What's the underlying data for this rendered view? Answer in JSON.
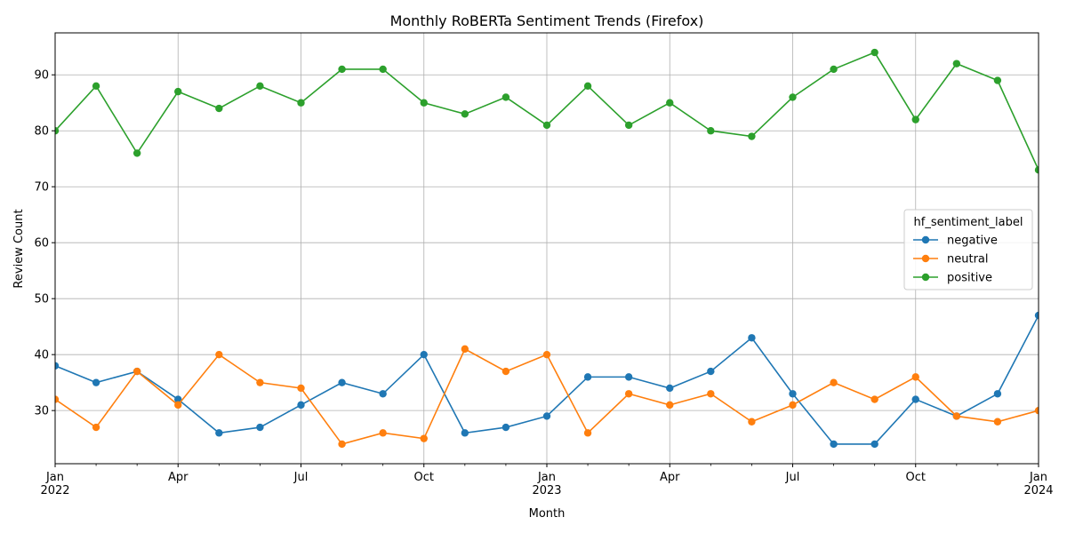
{
  "chart_data": {
    "type": "line",
    "title": "Monthly RoBERTa Sentiment Trends (Firefox)",
    "xlabel": "Month",
    "ylabel": "Review Count",
    "x": [
      "2022-01",
      "2022-02",
      "2022-03",
      "2022-04",
      "2022-05",
      "2022-06",
      "2022-07",
      "2022-08",
      "2022-09",
      "2022-10",
      "2022-11",
      "2022-12",
      "2023-01",
      "2023-02",
      "2023-03",
      "2023-04",
      "2023-05",
      "2023-06",
      "2023-07",
      "2023-08",
      "2023-09",
      "2023-10",
      "2023-11",
      "2023-12",
      "2024-01"
    ],
    "x_tick_labels": [
      {
        "month": "2022-01",
        "lines": [
          "Jan",
          "2022"
        ]
      },
      {
        "month": "2022-04",
        "lines": [
          "Apr"
        ]
      },
      {
        "month": "2022-07",
        "lines": [
          "Jul"
        ]
      },
      {
        "month": "2022-10",
        "lines": [
          "Oct"
        ]
      },
      {
        "month": "2023-01",
        "lines": [
          "Jan",
          "2023"
        ]
      },
      {
        "month": "2023-04",
        "lines": [
          "Apr"
        ]
      },
      {
        "month": "2023-07",
        "lines": [
          "Jul"
        ]
      },
      {
        "month": "2023-10",
        "lines": [
          "Oct"
        ]
      },
      {
        "month": "2024-01",
        "lines": [
          "Jan",
          "2024"
        ]
      }
    ],
    "ylim": [
      20.5,
      97.5
    ],
    "y_ticks": [
      30,
      40,
      50,
      60,
      70,
      80,
      90
    ],
    "grid": true,
    "legend": {
      "title": "hf_sentiment_label",
      "placement": "center-right"
    },
    "series": [
      {
        "name": "negative",
        "color": "#1f77b4",
        "values": [
          38,
          35,
          37,
          32,
          26,
          27,
          31,
          35,
          33,
          40,
          26,
          27,
          29,
          36,
          36,
          34,
          37,
          43,
          33,
          24,
          24,
          32,
          29,
          33,
          47
        ]
      },
      {
        "name": "neutral",
        "color": "#ff7f0e",
        "values": [
          32,
          27,
          37,
          31,
          40,
          35,
          34,
          24,
          26,
          25,
          41,
          37,
          40,
          26,
          33,
          31,
          33,
          28,
          31,
          35,
          32,
          36,
          29,
          28,
          30
        ]
      },
      {
        "name": "positive",
        "color": "#2ca02c",
        "values": [
          80,
          88,
          76,
          87,
          84,
          88,
          85,
          91,
          91,
          85,
          83,
          86,
          81,
          88,
          81,
          85,
          80,
          79,
          86,
          91,
          94,
          82,
          92,
          89,
          73
        ]
      }
    ]
  }
}
